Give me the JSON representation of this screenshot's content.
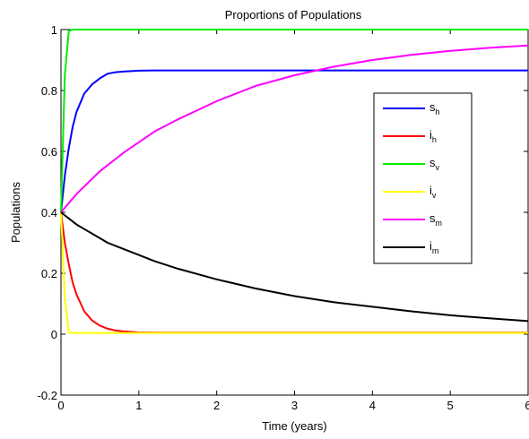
{
  "chart_data": {
    "type": "line",
    "title": "Proportions of Populations",
    "xlabel": "Time (years)",
    "ylabel": "Populations",
    "xlim": [
      0,
      6
    ],
    "ylim": [
      -0.2,
      1
    ],
    "xticks": [
      "0",
      "1",
      "2",
      "3",
      "4",
      "5",
      "6"
    ],
    "yticks": [
      "-0.2",
      "0",
      "0.2",
      "0.4",
      "0.6",
      "0.8",
      "1"
    ],
    "grid": false,
    "legend_position": "right",
    "x": [
      0,
      0.05,
      0.1,
      0.15,
      0.2,
      0.3,
      0.4,
      0.5,
      0.6,
      0.7,
      0.8,
      1.0,
      1.2,
      1.5,
      2,
      2.5,
      3,
      3.5,
      4,
      4.5,
      5,
      5.5,
      6
    ],
    "series": [
      {
        "name": "s",
        "sub": "h",
        "color": "#0000ff",
        "values": [
          0.4,
          0.52,
          0.61,
          0.68,
          0.73,
          0.79,
          0.82,
          0.84,
          0.855,
          0.86,
          0.862,
          0.865,
          0.866,
          0.866,
          0.866,
          0.866,
          0.866,
          0.866,
          0.866,
          0.866,
          0.866,
          0.866,
          0.866
        ]
      },
      {
        "name": "i",
        "sub": "h",
        "color": "#ff0000",
        "values": [
          0.4,
          0.3,
          0.23,
          0.17,
          0.13,
          0.075,
          0.045,
          0.028,
          0.018,
          0.012,
          0.009,
          0.006,
          0.005,
          0.005,
          0.005,
          0.005,
          0.005,
          0.005,
          0.005,
          0.005,
          0.005,
          0.005,
          0.005
        ]
      },
      {
        "name": "s",
        "sub": "v",
        "color": "#00ee00",
        "values": [
          0.4,
          0.85,
          0.995,
          1,
          1,
          1,
          1,
          1,
          1,
          1,
          1,
          1,
          1,
          1,
          1,
          1,
          1,
          1,
          1,
          1,
          1,
          1,
          1
        ]
      },
      {
        "name": "i",
        "sub": "v",
        "color": "#ffff00",
        "values": [
          0.4,
          0.12,
          0.005,
          0.004,
          0.004,
          0.004,
          0.004,
          0.004,
          0.004,
          0.004,
          0.004,
          0.004,
          0.004,
          0.004,
          0.004,
          0.004,
          0.004,
          0.004,
          0.004,
          0.004,
          0.004,
          0.004,
          0.004
        ]
      },
      {
        "name": "s",
        "sub": "m",
        "color": "#ff00ff",
        "values": [
          0.4,
          0.415,
          0.43,
          0.445,
          0.46,
          0.485,
          0.51,
          0.535,
          0.555,
          0.575,
          0.595,
          0.63,
          0.665,
          0.705,
          0.765,
          0.815,
          0.85,
          0.878,
          0.9,
          0.917,
          0.93,
          0.94,
          0.948
        ]
      },
      {
        "name": "i",
        "sub": "m",
        "color": "#000000",
        "values": [
          0.4,
          0.39,
          0.38,
          0.37,
          0.36,
          0.345,
          0.33,
          0.315,
          0.3,
          0.29,
          0.28,
          0.26,
          0.24,
          0.215,
          0.18,
          0.15,
          0.125,
          0.105,
          0.09,
          0.075,
          0.062,
          0.052,
          0.043
        ]
      }
    ]
  }
}
